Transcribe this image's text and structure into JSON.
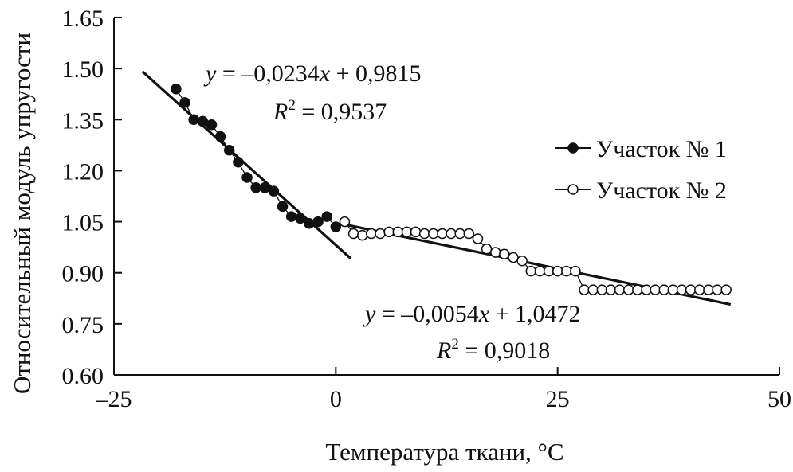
{
  "chart_data": {
    "type": "scatter",
    "xlabel": "Температура ткани, °C",
    "ylabel": "Относительный модуль упругости",
    "xlim": [
      -25,
      50
    ],
    "ylim": [
      0.6,
      1.65
    ],
    "xticks": [
      -25,
      0,
      25,
      50
    ],
    "yticks": [
      0.6,
      0.75,
      0.9,
      1.05,
      1.2,
      1.35,
      1.5,
      1.65
    ],
    "xtick_labels": [
      "–25",
      "0",
      "25",
      "50"
    ],
    "ytick_labels": [
      "0.60",
      "0.75",
      "0.90",
      "1.05",
      "1.20",
      "1.35",
      "1.50",
      "1.65"
    ],
    "legend_position": "right",
    "series": [
      {
        "name": "Участок № 1",
        "marker": "filled-circle",
        "x": [
          -18.0,
          -17.0,
          -16.0,
          -15.0,
          -14.0,
          -13.0,
          -12.0,
          -11.0,
          -10.0,
          -9.0,
          -8.0,
          -7.0,
          -6.0,
          -5.0,
          -4.0,
          -3.0,
          -2.0,
          -1.0,
          0.0
        ],
        "y": [
          1.44,
          1.4,
          1.35,
          1.345,
          1.335,
          1.3,
          1.26,
          1.225,
          1.18,
          1.15,
          1.15,
          1.14,
          1.095,
          1.065,
          1.06,
          1.045,
          1.05,
          1.065,
          1.035
        ]
      },
      {
        "name": "Участок № 2",
        "marker": "open-circle",
        "x": [
          1.0,
          2.0,
          3.0,
          4.0,
          5.0,
          6.0,
          7.0,
          8.0,
          9.0,
          10.0,
          11.0,
          12.0,
          13.0,
          14.0,
          15.0,
          16.0,
          17.0,
          18.0,
          19.0,
          20.0,
          21.0,
          22.0,
          23.0,
          24.0,
          25.0,
          26.0,
          27.0,
          28.0,
          29.0,
          30.0,
          31.0,
          32.0,
          33.0,
          34.0,
          35.0,
          36.0,
          37.0,
          38.0,
          39.0,
          40.0,
          41.0,
          42.0,
          43.0,
          44.0
        ],
        "y": [
          1.05,
          1.015,
          1.01,
          1.015,
          1.015,
          1.02,
          1.02,
          1.02,
          1.02,
          1.015,
          1.015,
          1.015,
          1.015,
          1.015,
          1.015,
          1.0,
          0.97,
          0.96,
          0.955,
          0.945,
          0.935,
          0.905,
          0.905,
          0.905,
          0.905,
          0.905,
          0.905,
          0.85,
          0.85,
          0.85,
          0.85,
          0.85,
          0.85,
          0.85,
          0.85,
          0.85,
          0.85,
          0.85,
          0.85,
          0.85,
          0.85,
          0.85,
          0.85,
          0.85
        ]
      }
    ],
    "trendlines": [
      {
        "slope": -0.0234,
        "intercept": 0.9815,
        "x_range": [
          -21.8,
          1.7
        ]
      },
      {
        "slope": -0.0054,
        "intercept": 1.0472,
        "x_range": [
          1.0,
          44.5
        ]
      }
    ],
    "annotations": [
      {
        "eq_pre": "y",
        "eq_mid": " = –0,0234",
        "eq_x": "x",
        "eq_post": " + 0,9815",
        "r_label": "R",
        "r_exp": "2",
        "r_val": " = 0,9537"
      },
      {
        "eq_pre": "y",
        "eq_mid": " = –0,0054",
        "eq_x": "x",
        "eq_post": " + 1,0472",
        "r_label": "R",
        "r_exp": "2",
        "r_val": " = 0,9018"
      }
    ]
  }
}
